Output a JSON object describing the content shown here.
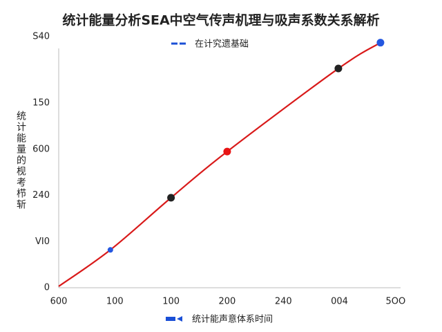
{
  "chart_data": {
    "type": "line",
    "title": "统计能量分析SEA中空气传声机理与吸声系数关系解析",
    "y_label": "统计能量的枧考栉斩",
    "x_label": "统计能声意体系时间",
    "legend_color": "#1a4fd6",
    "series": [
      {
        "name": "在计究遗基础",
        "color": "#d91a1a",
        "x": [
          0,
          0.92,
          2,
          3,
          4.98,
          5.73
        ],
        "values": [
          0.03,
          0.82,
          1.95,
          2.95,
          4.75,
          5.31
        ]
      }
    ],
    "points": {
      "x": [
        0.92,
        2,
        3,
        4.98,
        5.73
      ],
      "values": [
        0.82,
        1.95,
        2.95,
        4.75,
        5.31
      ],
      "colors": [
        "#2457e0",
        "#222222",
        "#e81414",
        "#222222",
        "#2457e0"
      ]
    },
    "xlim": [
      0,
      6.1
    ],
    "ylim": [
      0,
      5.5
    ],
    "xticks": [
      {
        "value": 0,
        "label": "600"
      },
      {
        "value": 1,
        "label": "100"
      },
      {
        "value": 2,
        "label": "100"
      },
      {
        "value": 3,
        "label": "200"
      },
      {
        "value": 4,
        "label": "240"
      },
      {
        "value": 5,
        "label": "004"
      },
      {
        "value": 6,
        "label": "5OO"
      }
    ],
    "yticks": [
      0,
      {
        "value": 1,
        "label": "VI0"
      },
      {
        "value": 2,
        "label": "240"
      },
      {
        "value": 3,
        "label": "600"
      },
      {
        "value": 4,
        "label": "150"
      },
      {
        "value": 5.44,
        "label": "S40"
      }
    ]
  }
}
